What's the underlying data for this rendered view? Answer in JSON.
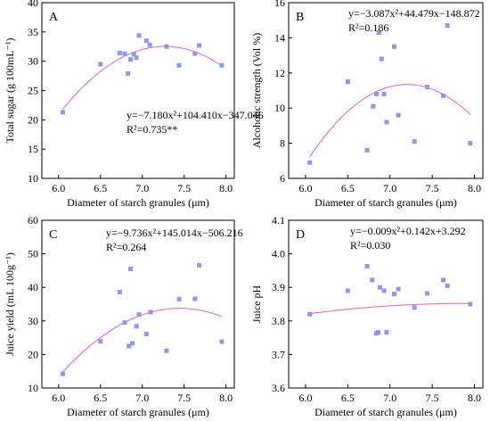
{
  "colors": {
    "point": "#8E97EE",
    "curve": "#E85BC6",
    "axis": "#000000"
  },
  "chart_data": [
    {
      "type": "scatter",
      "panel_letter": "A",
      "xlabel": "Diameter of starch granules (μm)",
      "ylabel": "Total sugar (g 100mL⁻¹)",
      "xlim": [
        5.8,
        8.1
      ],
      "ylim": [
        10,
        40
      ],
      "xticks": [
        "6.0",
        "6.5",
        "7.0",
        "7.5",
        "8.0"
      ],
      "yticks": [
        "10",
        "15",
        "20",
        "25",
        "30",
        "35",
        "40"
      ],
      "grid": false,
      "equation": "y=−7.180x²+104.410x−347.046",
      "r2": "R²=0.735**",
      "fit": {
        "a": -7.18,
        "b": 104.41,
        "c": -347.046,
        "x_range": [
          6.05,
          7.95
        ]
      },
      "points": [
        {
          "x": 6.05,
          "y": 21.3
        },
        {
          "x": 6.5,
          "y": 29.5
        },
        {
          "x": 6.73,
          "y": 31.4
        },
        {
          "x": 6.79,
          "y": 31.3
        },
        {
          "x": 6.83,
          "y": 27.9
        },
        {
          "x": 6.86,
          "y": 30.3
        },
        {
          "x": 6.9,
          "y": 31.2
        },
        {
          "x": 6.93,
          "y": 30.6
        },
        {
          "x": 6.96,
          "y": 34.4
        },
        {
          "x": 7.05,
          "y": 33.5
        },
        {
          "x": 7.09,
          "y": 32.8
        },
        {
          "x": 7.29,
          "y": 32.5
        },
        {
          "x": 7.44,
          "y": 29.3
        },
        {
          "x": 7.63,
          "y": 31.3
        },
        {
          "x": 7.68,
          "y": 32.7
        },
        {
          "x": 7.95,
          "y": 29.3
        }
      ]
    },
    {
      "type": "scatter",
      "panel_letter": "B",
      "xlabel": "Diameter of starch granules (μm)",
      "ylabel": "Alcoholic strength (Vol %)",
      "xlim": [
        5.8,
        8.1
      ],
      "ylim": [
        6,
        16
      ],
      "xticks": [
        "6.0",
        "6.5",
        "7.0",
        "7.5",
        "8.0"
      ],
      "yticks": [
        "6",
        "8",
        "10",
        "12",
        "14",
        "16"
      ],
      "grid": false,
      "equation": "y=−3.087x²+44.479x−148.872",
      "r2": "R²=0.186",
      "fit": {
        "a": -3.087,
        "b": 44.479,
        "c": -148.872,
        "x_range": [
          6.05,
          7.95
        ]
      },
      "points": [
        {
          "x": 6.05,
          "y": 6.9
        },
        {
          "x": 6.5,
          "y": 11.5
        },
        {
          "x": 6.73,
          "y": 7.6
        },
        {
          "x": 6.8,
          "y": 10.1
        },
        {
          "x": 6.84,
          "y": 10.8
        },
        {
          "x": 6.87,
          "y": 14.3
        },
        {
          "x": 6.9,
          "y": 12.8
        },
        {
          "x": 6.93,
          "y": 10.8
        },
        {
          "x": 6.96,
          "y": 9.2
        },
        {
          "x": 7.05,
          "y": 13.5
        },
        {
          "x": 7.1,
          "y": 9.6
        },
        {
          "x": 7.29,
          "y": 8.1
        },
        {
          "x": 7.44,
          "y": 11.2
        },
        {
          "x": 7.63,
          "y": 10.7
        },
        {
          "x": 7.68,
          "y": 14.7
        },
        {
          "x": 7.95,
          "y": 8.0
        }
      ]
    },
    {
      "type": "scatter",
      "panel_letter": "C",
      "xlabel": "Diameter of starch granules (μm)",
      "ylabel": "Juice yield (mL 100g⁻¹)",
      "xlim": [
        5.8,
        8.1
      ],
      "ylim": [
        10,
        60
      ],
      "xticks": [
        "6.0",
        "6.5",
        "7.0",
        "7.5",
        "8.0"
      ],
      "yticks": [
        "10",
        "20",
        "30",
        "40",
        "50",
        "60"
      ],
      "grid": false,
      "equation": "y=−9.736x²+145.014x−506.216",
      "r2": "R²=0.264",
      "fit": {
        "a": -9.736,
        "b": 145.014,
        "c": -506.216,
        "x_range": [
          6.05,
          7.95
        ]
      },
      "points": [
        {
          "x": 6.05,
          "y": 14.2
        },
        {
          "x": 6.5,
          "y": 23.9
        },
        {
          "x": 6.73,
          "y": 38.6
        },
        {
          "x": 6.79,
          "y": 29.5
        },
        {
          "x": 6.84,
          "y": 22.5
        },
        {
          "x": 6.86,
          "y": 45.5
        },
        {
          "x": 6.88,
          "y": 23.3
        },
        {
          "x": 6.93,
          "y": 28.4
        },
        {
          "x": 6.96,
          "y": 31.9
        },
        {
          "x": 7.05,
          "y": 26.1
        },
        {
          "x": 7.1,
          "y": 32.6
        },
        {
          "x": 7.29,
          "y": 21.1
        },
        {
          "x": 7.44,
          "y": 36.5
        },
        {
          "x": 7.63,
          "y": 36.6
        },
        {
          "x": 7.68,
          "y": 46.6
        },
        {
          "x": 7.95,
          "y": 23.8
        }
      ]
    },
    {
      "type": "scatter",
      "panel_letter": "D",
      "xlabel": "Diameter of starch granules (μm)",
      "ylabel": "Juice pH",
      "xlim": [
        5.8,
        8.1
      ],
      "ylim": [
        3.6,
        4.1
      ],
      "xticks": [
        "6.0",
        "6.5",
        "7.0",
        "7.5",
        "8.0"
      ],
      "yticks": [
        "3.6",
        "3.7",
        "3.8",
        "3.9",
        "4.0",
        "4.1"
      ],
      "grid": false,
      "equation": "y=−0.009x²+0.142x+3.292",
      "r2": "R²=0.030",
      "fit": {
        "a": -0.009,
        "b": 0.142,
        "c": 3.292,
        "x_range": [
          6.05,
          7.95
        ]
      },
      "points": [
        {
          "x": 6.05,
          "y": 3.82
        },
        {
          "x": 6.5,
          "y": 3.89
        },
        {
          "x": 6.73,
          "y": 3.963
        },
        {
          "x": 6.79,
          "y": 3.922
        },
        {
          "x": 6.84,
          "y": 3.763
        },
        {
          "x": 6.86,
          "y": 3.766
        },
        {
          "x": 6.88,
          "y": 3.9
        },
        {
          "x": 6.93,
          "y": 3.89
        },
        {
          "x": 6.96,
          "y": 3.766
        },
        {
          "x": 7.05,
          "y": 3.88
        },
        {
          "x": 7.1,
          "y": 3.895
        },
        {
          "x": 7.29,
          "y": 3.84
        },
        {
          "x": 7.44,
          "y": 3.882
        },
        {
          "x": 7.63,
          "y": 3.922
        },
        {
          "x": 7.68,
          "y": 3.905
        },
        {
          "x": 7.95,
          "y": 3.85
        }
      ]
    }
  ]
}
